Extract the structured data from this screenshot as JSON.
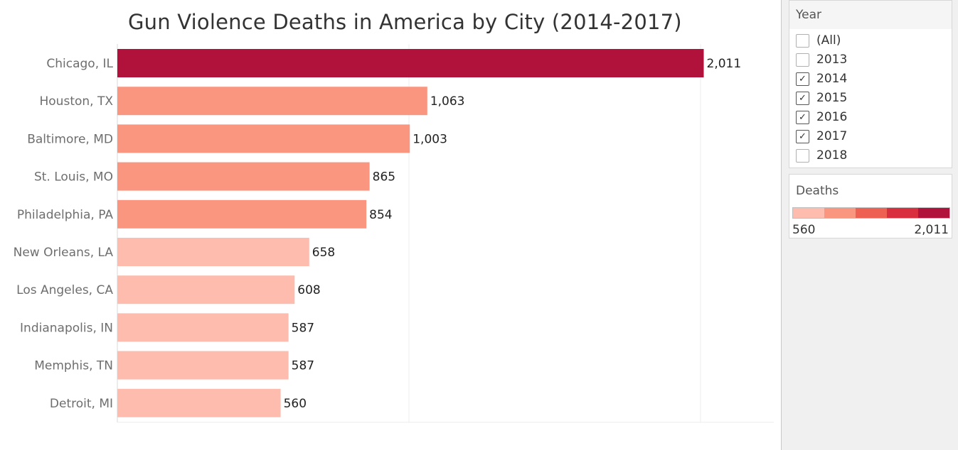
{
  "chart_data": {
    "type": "bar",
    "orientation": "horizontal",
    "title": "Gun Violence Deaths in America by City (2014-2017)",
    "xlabel": "",
    "ylabel": "",
    "categories": [
      "Chicago, IL",
      "Houston, TX",
      "Baltimore, MD",
      "St. Louis, MO",
      "Philadelphia, PA",
      "New Orleans, LA",
      "Los Angeles, CA",
      "Indianapolis, IN",
      "Memphis, TN",
      "Detroit, MI"
    ],
    "values": [
      2011,
      1063,
      1003,
      865,
      854,
      658,
      608,
      587,
      587,
      560
    ],
    "value_labels": [
      "2,011",
      "1,063",
      "1,003",
      "865",
      "854",
      "658",
      "608",
      "587",
      "587",
      "560"
    ],
    "xlim": [
      0,
      2250
    ],
    "grid": true,
    "x_axis_labels_shown": false,
    "color_encoding": "Deaths",
    "color_steps": [
      "#fdbcad",
      "#fa9680",
      "#ee6152",
      "#d82e3d",
      "#b0123b"
    ],
    "color_range": [
      560,
      2011
    ]
  },
  "filters": {
    "year": {
      "title": "Year",
      "options": [
        {
          "label": "(All)",
          "checked": false
        },
        {
          "label": "2013",
          "checked": false
        },
        {
          "label": "2014",
          "checked": true
        },
        {
          "label": "2015",
          "checked": true
        },
        {
          "label": "2016",
          "checked": true
        },
        {
          "label": "2017",
          "checked": true
        },
        {
          "label": "2018",
          "checked": false
        }
      ],
      "check_glyph": "✓"
    }
  },
  "legend": {
    "title": "Deaths",
    "min_label": "560",
    "max_label": "2,011"
  }
}
